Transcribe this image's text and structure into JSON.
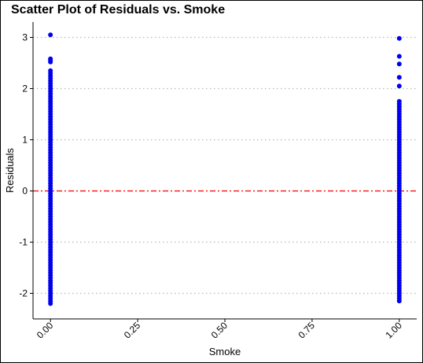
{
  "chart_data": {
    "type": "scatter",
    "title": "Scatter Plot of Residuals vs. Smoke",
    "xlabel": "Smoke",
    "ylabel": "Residuals",
    "x_ticks": [
      0.0,
      0.25,
      0.5,
      0.75,
      1.0
    ],
    "x_tick_labels": [
      "0.00",
      "0.25",
      "0.50",
      "0.75",
      "1.00"
    ],
    "y_ticks": [
      -2,
      -1,
      0,
      1,
      2,
      3
    ],
    "y_tick_labels": [
      "-2",
      "-1",
      "0",
      "1",
      "2",
      "3"
    ],
    "xlim": [
      -0.05,
      1.05
    ],
    "ylim": [
      -2.5,
      3.3
    ],
    "grid": "horizontal-dotted",
    "reference_line": {
      "y": 0,
      "color": "#ff0000",
      "style": "dashed"
    },
    "point_color": "#0000ee",
    "series": [
      {
        "x": 0,
        "values": [
          3.05,
          2.58,
          2.55,
          2.52,
          2.35,
          2.3,
          2.25,
          2.2,
          2.15,
          2.1,
          2.05,
          2.0,
          1.95,
          1.9,
          1.85,
          1.8,
          1.75,
          1.7,
          1.65,
          1.6,
          1.55,
          1.5,
          1.45,
          1.4,
          1.35,
          1.3,
          1.25,
          1.2,
          1.15,
          1.1,
          1.05,
          1.0,
          0.95,
          0.9,
          0.85,
          0.8,
          0.75,
          0.7,
          0.65,
          0.6,
          0.55,
          0.5,
          0.45,
          0.4,
          0.35,
          0.3,
          0.25,
          0.2,
          0.15,
          0.1,
          0.05,
          0.0,
          -0.05,
          -0.1,
          -0.15,
          -0.2,
          -0.25,
          -0.3,
          -0.35,
          -0.4,
          -0.45,
          -0.5,
          -0.55,
          -0.6,
          -0.65,
          -0.7,
          -0.75,
          -0.8,
          -0.85,
          -0.9,
          -0.95,
          -1.0,
          -1.05,
          -1.1,
          -1.15,
          -1.2,
          -1.25,
          -1.3,
          -1.35,
          -1.4,
          -1.45,
          -1.5,
          -1.55,
          -1.6,
          -1.65,
          -1.7,
          -1.75,
          -1.8,
          -1.85,
          -1.9,
          -1.95,
          -2.0,
          -2.05,
          -2.1,
          -2.15,
          -2.2
        ]
      },
      {
        "x": 1,
        "values": [
          2.98,
          2.63,
          2.48,
          2.22,
          2.05,
          1.75,
          1.7,
          1.65,
          1.6,
          1.55,
          1.5,
          1.45,
          1.4,
          1.35,
          1.3,
          1.25,
          1.2,
          1.15,
          1.1,
          1.05,
          1.0,
          0.95,
          0.9,
          0.85,
          0.8,
          0.75,
          0.7,
          0.65,
          0.6,
          0.55,
          0.5,
          0.45,
          0.4,
          0.35,
          0.3,
          0.25,
          0.2,
          0.15,
          0.1,
          0.05,
          0.0,
          -0.05,
          -0.1,
          -0.15,
          -0.2,
          -0.25,
          -0.3,
          -0.35,
          -0.4,
          -0.45,
          -0.5,
          -0.55,
          -0.6,
          -0.65,
          -0.7,
          -0.75,
          -0.8,
          -0.85,
          -0.9,
          -0.95,
          -1.0,
          -1.05,
          -1.1,
          -1.15,
          -1.2,
          -1.25,
          -1.3,
          -1.35,
          -1.4,
          -1.45,
          -1.5,
          -1.55,
          -1.6,
          -1.65,
          -1.7,
          -1.75,
          -1.8,
          -1.85,
          -1.9,
          -1.95,
          -2.0,
          -2.05,
          -2.1,
          -2.15
        ]
      }
    ]
  }
}
